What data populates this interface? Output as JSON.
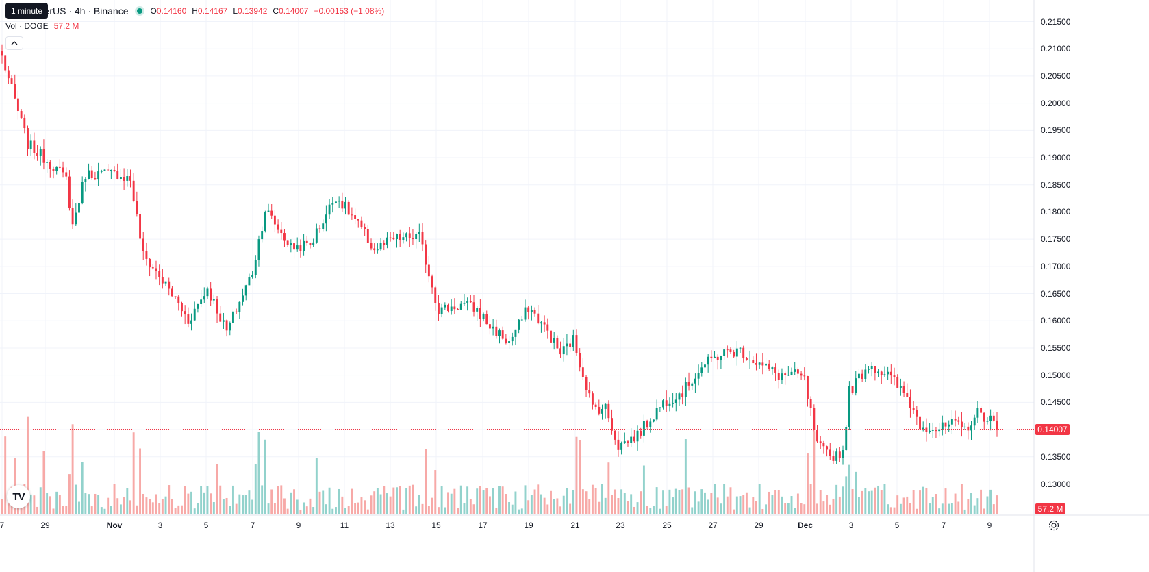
{
  "tooltip": "1 minute",
  "symbol": {
    "title": "oin / TetherUS · 4h · Binance",
    "open_label": "O",
    "open_value": "0.14160",
    "high_label": "H",
    "high_value": "0.14167",
    "low_label": "L",
    "low_value": "0.13942",
    "close_label": "C",
    "close_value": "0.14007",
    "change": "−0.00153 (−1.08%)"
  },
  "volume": {
    "label": "Vol · DOGE",
    "value": "57.2 M"
  },
  "price_axis_ticks": [
    "0.21500",
    "0.21000",
    "0.20500",
    "0.20000",
    "0.19500",
    "0.19000",
    "0.18500",
    "0.18000",
    "0.17500",
    "0.17000",
    "0.16500",
    "0.16000",
    "0.15500",
    "0.15000",
    "0.14500",
    "0.14000",
    "0.13500",
    "0.13000"
  ],
  "time_axis_ticks": [
    {
      "label": "7",
      "bold": false
    },
    {
      "label": "29",
      "bold": false
    },
    {
      "label": "Nov",
      "bold": true
    },
    {
      "label": "3",
      "bold": false
    },
    {
      "label": "5",
      "bold": false
    },
    {
      "label": "7",
      "bold": false
    },
    {
      "label": "9",
      "bold": false
    },
    {
      "label": "11",
      "bold": false
    },
    {
      "label": "13",
      "bold": false
    },
    {
      "label": "15",
      "bold": false
    },
    {
      "label": "17",
      "bold": false
    },
    {
      "label": "19",
      "bold": false
    },
    {
      "label": "21",
      "bold": false
    },
    {
      "label": "23",
      "bold": false
    },
    {
      "label": "25",
      "bold": false
    },
    {
      "label": "27",
      "bold": false
    },
    {
      "label": "29",
      "bold": false
    },
    {
      "label": "Dec",
      "bold": true
    },
    {
      "label": "3",
      "bold": false
    },
    {
      "label": "5",
      "bold": false
    },
    {
      "label": "7",
      "bold": false
    },
    {
      "label": "9",
      "bold": false
    }
  ],
  "current_price_badge": "0.14007",
  "volume_badge": "57.2 M",
  "colors": {
    "up": "#089981",
    "down": "#f23645",
    "up_volume": "#92d2cc",
    "down_volume": "#f7a9a7",
    "grid": "#f0f3fa"
  },
  "logo": "TV",
  "chart_data": {
    "type": "candlestick",
    "price_range": [
      0.1262,
      0.2175
    ],
    "current_price": 0.14007,
    "price_keyframes": [
      [
        0,
        0.2085
      ],
      [
        8,
        0.1925
      ],
      [
        16,
        0.1885
      ],
      [
        20,
        0.186
      ],
      [
        22,
        0.1775
      ],
      [
        26,
        0.187
      ],
      [
        36,
        0.187
      ],
      [
        40,
        0.186
      ],
      [
        44,
        0.172
      ],
      [
        48,
        0.169
      ],
      [
        54,
        0.164
      ],
      [
        58,
        0.16
      ],
      [
        64,
        0.166
      ],
      [
        70,
        0.158
      ],
      [
        78,
        0.169
      ],
      [
        82,
        0.1805
      ],
      [
        90,
        0.1735
      ],
      [
        96,
        0.174
      ],
      [
        104,
        0.183
      ],
      [
        110,
        0.1785
      ],
      [
        116,
        0.173
      ],
      [
        122,
        0.175
      ],
      [
        130,
        0.1755
      ],
      [
        136,
        0.162
      ],
      [
        144,
        0.163
      ],
      [
        148,
        0.162
      ],
      [
        152,
        0.159
      ],
      [
        158,
        0.156
      ],
      [
        164,
        0.1625
      ],
      [
        170,
        0.158
      ],
      [
        174,
        0.154
      ],
      [
        178,
        0.1565
      ],
      [
        184,
        0.144
      ],
      [
        188,
        0.144
      ],
      [
        192,
        0.137
      ],
      [
        198,
        0.139
      ],
      [
        206,
        0.145
      ],
      [
        212,
        0.147
      ],
      [
        218,
        0.1515
      ],
      [
        224,
        0.154
      ],
      [
        230,
        0.1545
      ],
      [
        236,
        0.152
      ],
      [
        242,
        0.15
      ],
      [
        248,
        0.15
      ],
      [
        250,
        0.149
      ],
      [
        254,
        0.137
      ],
      [
        258,
        0.135
      ],
      [
        262,
        0.136
      ],
      [
        264,
        0.147
      ],
      [
        270,
        0.152
      ],
      [
        276,
        0.15
      ],
      [
        282,
        0.146
      ],
      [
        286,
        0.141
      ],
      [
        292,
        0.14
      ],
      [
        296,
        0.141
      ],
      [
        300,
        0.14
      ],
      [
        304,
        0.143
      ],
      [
        308,
        0.142
      ],
      [
        310,
        0.14007
      ]
    ],
    "candle_count": 311,
    "volume_unit": "M"
  }
}
